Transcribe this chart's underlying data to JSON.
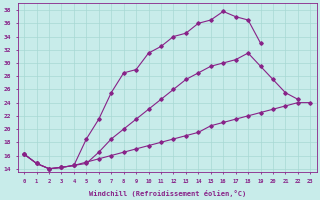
{
  "xlabel": "Windchill (Refroidissement éolien,°C)",
  "xlim": [
    -0.5,
    23.5
  ],
  "ylim": [
    13.5,
    39
  ],
  "xticks": [
    0,
    1,
    2,
    3,
    4,
    5,
    6,
    7,
    8,
    9,
    10,
    11,
    12,
    13,
    14,
    15,
    16,
    17,
    18,
    19,
    20,
    21,
    22,
    23
  ],
  "yticks": [
    14,
    16,
    18,
    20,
    22,
    24,
    26,
    28,
    30,
    32,
    34,
    36,
    38
  ],
  "background_color": "#c8ecea",
  "grid_color": "#a8d8d4",
  "line_color": "#882288",
  "line1_x": [
    0,
    1,
    2,
    3,
    4,
    5,
    6,
    7,
    8,
    9,
    10,
    11,
    12,
    13,
    14,
    15,
    16,
    17,
    18,
    19
  ],
  "line1_y": [
    16.2,
    14.8,
    14.0,
    14.2,
    14.5,
    18.5,
    21.5,
    25.5,
    28.5,
    29.0,
    31.5,
    32.5,
    34.0,
    34.5,
    36.0,
    36.5,
    37.8,
    37.0,
    36.5,
    33.0
  ],
  "line2_x": [
    0,
    1,
    2,
    3,
    4,
    5,
    6,
    7,
    8,
    9,
    10,
    11,
    12,
    13,
    14,
    15,
    16,
    17,
    18,
    19,
    20,
    21,
    22
  ],
  "line2_y": [
    16.2,
    14.8,
    14.0,
    14.2,
    14.5,
    14.8,
    16.5,
    18.5,
    20.0,
    21.5,
    23.0,
    24.5,
    26.0,
    27.5,
    28.5,
    29.5,
    30.0,
    30.5,
    31.5,
    29.5,
    27.5,
    25.5,
    24.5
  ],
  "line3_x": [
    0,
    1,
    2,
    3,
    4,
    5,
    6,
    7,
    8,
    9,
    10,
    11,
    12,
    13,
    14,
    15,
    16,
    17,
    18,
    19,
    20,
    21,
    22,
    23
  ],
  "line3_y": [
    16.2,
    14.8,
    14.0,
    14.2,
    14.5,
    15.0,
    15.5,
    16.0,
    16.5,
    17.0,
    17.5,
    18.0,
    18.5,
    19.0,
    19.5,
    20.5,
    21.0,
    21.5,
    22.0,
    22.5,
    23.0,
    23.5,
    24.0,
    24.0
  ]
}
